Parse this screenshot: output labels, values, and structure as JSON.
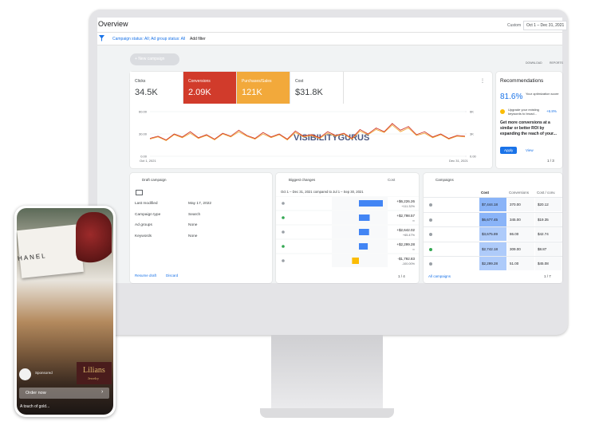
{
  "header": {
    "title": "Overview",
    "date_label": "Custom",
    "date_range": "Oct 1 – Dec 31, 2021"
  },
  "filter": {
    "text": "Campaign status: All; Ad group status: All",
    "add": "Add filter"
  },
  "toolbar": {
    "new_campaign": "New campaign",
    "download": "DOWNLOAD",
    "reports": "REPORTS"
  },
  "metrics": [
    {
      "label": "Clicks",
      "value": "34.5K"
    },
    {
      "label": "Conversions",
      "value": "2.09K"
    },
    {
      "label": "Purchases/Sales",
      "value": "121K"
    },
    {
      "label": "Cost",
      "value": "$31.8K"
    }
  ],
  "overview_chart": {
    "ylim_left": [
      0,
      60
    ],
    "ylim_right": [
      0,
      6000
    ],
    "yticks_left": [
      {
        "value": 60,
        "label": "60.00"
      },
      {
        "value": 30,
        "label": "30.00"
      },
      {
        "value": 0,
        "label": "0.00"
      }
    ],
    "yticks_right": [
      {
        "value": 6000,
        "label": "6K"
      },
      {
        "value": 3000,
        "label": "3K"
      },
      {
        "value": 0,
        "label": "0.00"
      }
    ],
    "x_start": "Oct 1, 2021",
    "x_end": "Dec 31, 2021",
    "conversions": [
      24,
      27,
      22,
      30,
      26,
      33,
      25,
      29,
      23,
      31,
      27,
      35,
      28,
      24,
      32,
      26,
      30,
      23,
      34,
      27,
      29,
      25,
      33,
      28,
      31,
      24,
      36,
      30,
      38,
      33,
      44,
      35,
      40,
      29,
      33,
      26,
      30,
      24,
      28,
      27
    ],
    "purchases": [
      2300,
      2600,
      2100,
      2900,
      2500,
      3100,
      2400,
      2800,
      2200,
      3000,
      2600,
      3300,
      2700,
      2300,
      3000,
      2500,
      2900,
      2200,
      3200,
      2600,
      2800,
      2400,
      3100,
      2700,
      3000,
      2300,
      3400,
      2900,
      3600,
      3200,
      4200,
      3300,
      3800,
      2800,
      3100,
      2500,
      2900,
      2300,
      2700,
      2600
    ],
    "watermark": "VISIBILITYGURUS"
  },
  "recommendations": {
    "title": "Recommendations",
    "score": "81.6%",
    "score_label": "Your optimization score",
    "item": "Upgrade your existing keywords to broad...",
    "item_gain": "+6.8%",
    "body": "Get more conversions at a similar or better ROI by expanding the reach of your...",
    "apply": "Apply",
    "view": "View",
    "pager": "1 / 3"
  },
  "draft": {
    "title": "Draft campaign",
    "rows": [
      [
        "Last modified",
        "May 17, 2022"
      ],
      [
        "Campaign type",
        "Search"
      ],
      [
        "Ad groups",
        "None"
      ],
      [
        "Keywords",
        "None"
      ]
    ],
    "resume": "Resume draft",
    "discard": "Discard"
  },
  "changes": {
    "title": "Biggest changes",
    "metric": "Cost",
    "period": "Oct 1 – Dec 31, 2021 compared to Jul 1 – Sep 30, 2021",
    "rows": [
      {
        "dot": "#9aa0a6",
        "value": 6226.26,
        "label": "+$6,226.26",
        "pct": "+111.32%"
      },
      {
        "dot": "#34a853",
        "value": 2798.57,
        "label": "+$2,798.57",
        "pct": "∞"
      },
      {
        "dot": "#9aa0a6",
        "value": 2642.02,
        "label": "+$2,642.02",
        "pct": "+65.47%"
      },
      {
        "dot": "#34a853",
        "value": 2299.28,
        "label": "+$2,299.28",
        "pct": "∞"
      },
      {
        "dot": "#9aa0a6",
        "value": -1792.83,
        "label": "-$1,792.83",
        "pct": "-100.00%"
      }
    ],
    "pager": "1 / 4"
  },
  "campaigns": {
    "title": "Campaigns",
    "columns": [
      "Cost",
      "Conversions",
      "Cost / conv."
    ],
    "rows": [
      {
        "dot": "#9aa0a6",
        "cells": [
          "$7,444.18",
          "370.00",
          "$20.12"
        ]
      },
      {
        "dot": "#9aa0a6",
        "cells": [
          "$6,677.45",
          "345.00",
          "$19.35"
        ]
      },
      {
        "dot": "#9aa0a6",
        "cells": [
          "$3,675.89",
          "86.00",
          "$42.74"
        ]
      },
      {
        "dot": "#34a853",
        "cells": [
          "$2,742.18",
          "309.00",
          "$8.87"
        ]
      },
      {
        "dot": "#9aa0a6",
        "cells": [
          "$2,299.28",
          "51.00",
          "$45.08"
        ]
      }
    ],
    "all": "All campaigns",
    "pager": "1 / 7"
  },
  "phone": {
    "brand_box": "HANEL",
    "sponsored": "Sponsored",
    "logo": "Lilians",
    "logo_sub": "Jewelry",
    "cta": "Order now",
    "caption": "A touch of gold..."
  }
}
